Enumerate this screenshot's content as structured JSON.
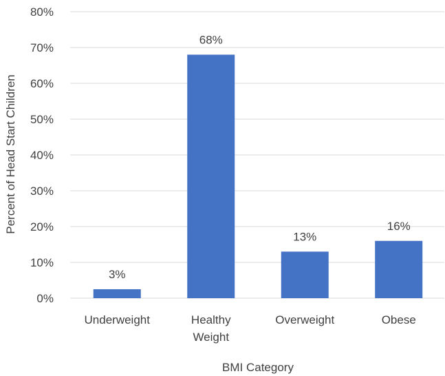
{
  "chart_data": {
    "type": "bar",
    "categories": [
      [
        "Underweight"
      ],
      [
        "Healthy",
        "Weight"
      ],
      [
        "Overweight"
      ],
      [
        "Obese"
      ]
    ],
    "values": [
      2.5,
      68,
      13,
      16
    ],
    "data_labels": [
      "3%",
      "68%",
      "13%",
      "16%"
    ],
    "title": "",
    "xlabel": "BMI Category",
    "ylabel": "Percent of Head Start Children",
    "ylim": [
      0,
      80
    ],
    "yticks": [
      0,
      10,
      20,
      30,
      40,
      50,
      60,
      70,
      80
    ],
    "ytick_labels": [
      "0%",
      "10%",
      "20%",
      "30%",
      "40%",
      "50%",
      "60%",
      "70%",
      "80%"
    ],
    "grid": true,
    "legend": "none",
    "colors": {
      "bar": "#4472C4",
      "grid": "#D9D9D9",
      "text": "#404040"
    }
  }
}
